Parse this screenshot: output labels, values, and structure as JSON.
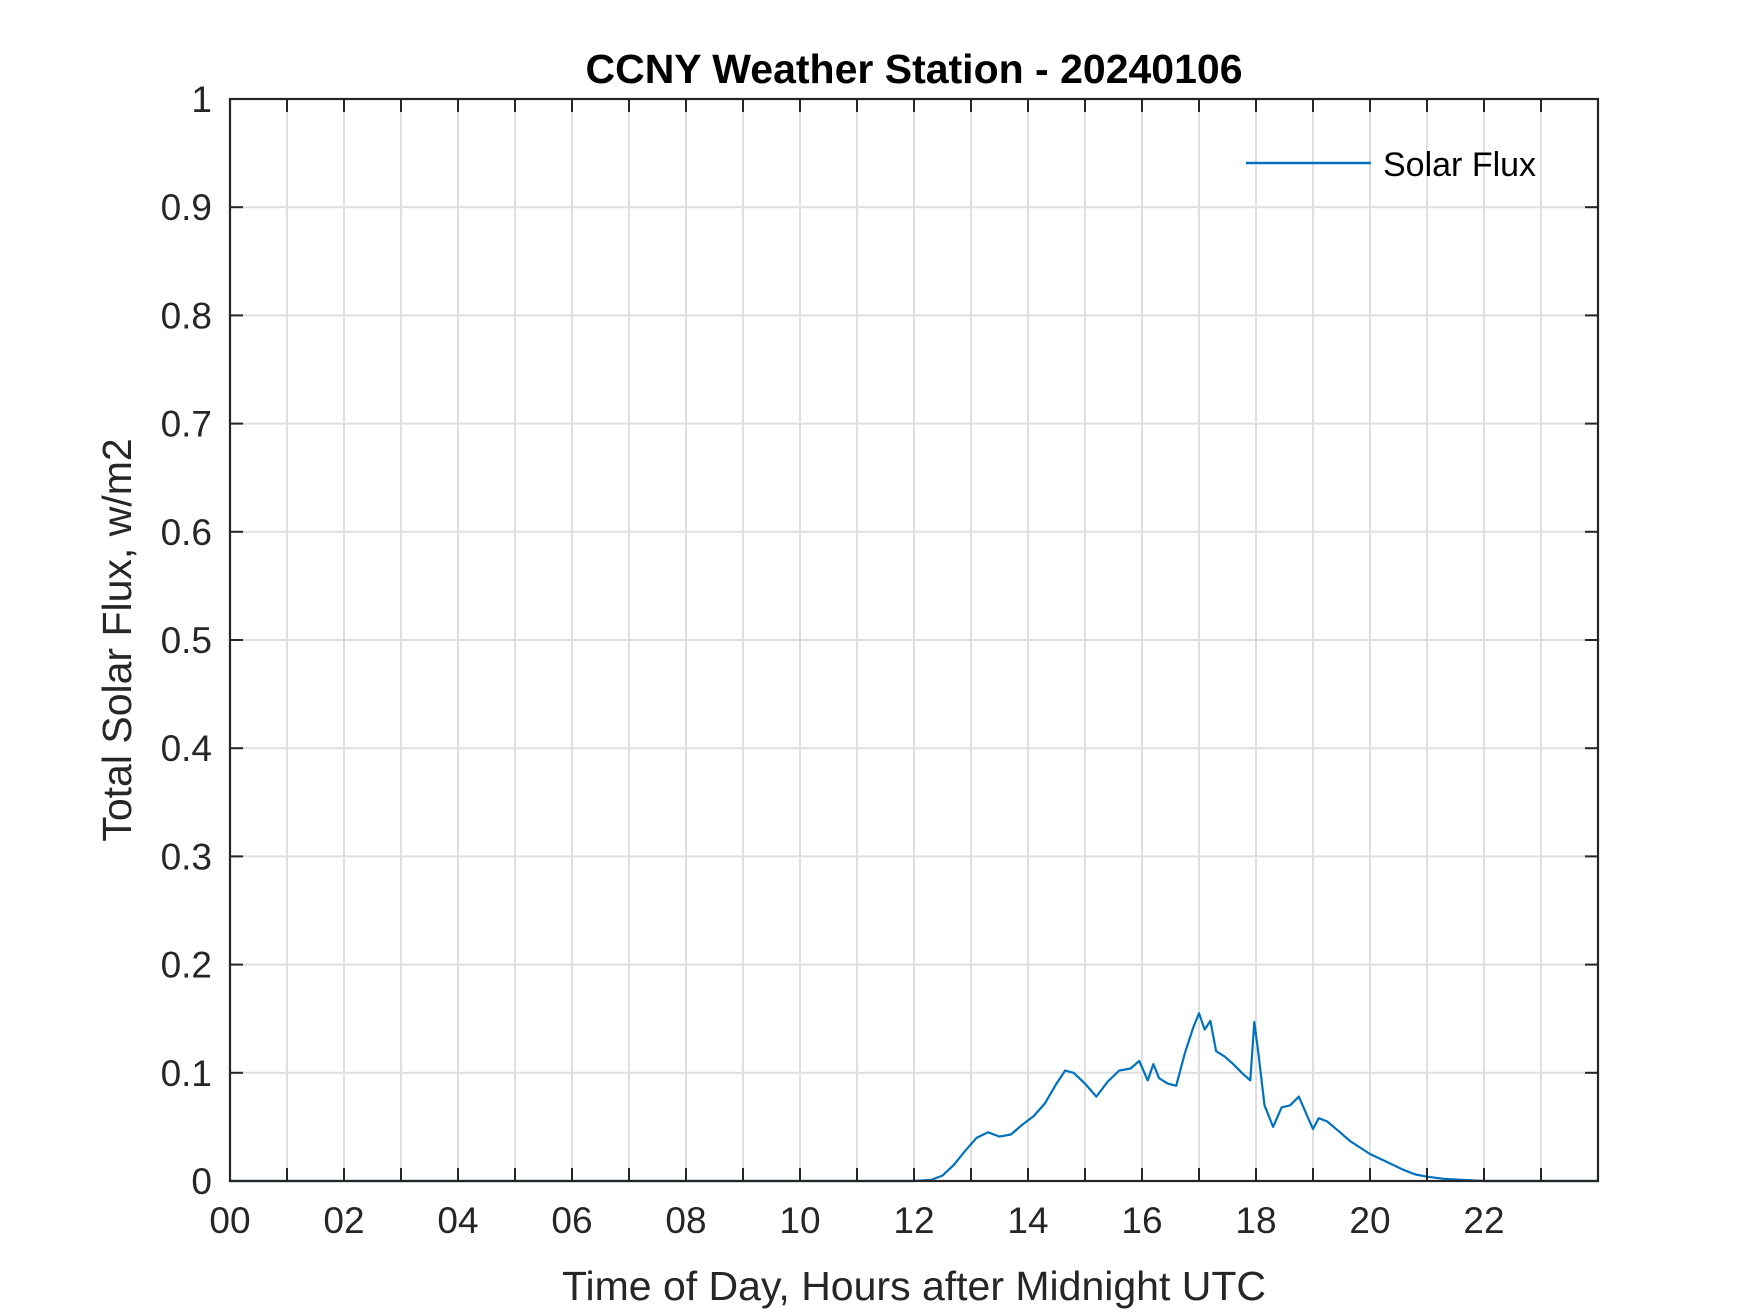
{
  "chart_data": {
    "type": "line",
    "title": "CCNY Weather Station - 20240106",
    "xlabel": "Time of Day, Hours after Midnight UTC",
    "ylabel": "Total Solar Flux, w/m2",
    "xlim": [
      0,
      24
    ],
    "ylim": [
      0,
      1
    ],
    "xticks": [
      0,
      2,
      4,
      6,
      8,
      10,
      12,
      14,
      16,
      18,
      20,
      22
    ],
    "xtick_labels": [
      "00",
      "02",
      "04",
      "06",
      "08",
      "10",
      "12",
      "14",
      "16",
      "18",
      "20",
      "22"
    ],
    "xgrid_step": 1,
    "yticks": [
      0,
      0.1,
      0.2,
      0.3,
      0.4,
      0.5,
      0.6,
      0.7,
      0.8,
      0.9,
      1
    ],
    "ytick_labels": [
      "0",
      "0.1",
      "0.2",
      "0.3",
      "0.4",
      "0.5",
      "0.6",
      "0.7",
      "0.8",
      "0.9",
      "1"
    ],
    "grid": true,
    "legend_position": "top-right",
    "series": [
      {
        "name": "Solar Flux",
        "color": "#0072BD",
        "x": [
          0,
          12.0,
          12.3,
          12.5,
          12.7,
          12.9,
          13.1,
          13.3,
          13.5,
          13.7,
          13.9,
          14.1,
          14.3,
          14.5,
          14.65,
          14.8,
          15.0,
          15.2,
          15.4,
          15.6,
          15.8,
          15.95,
          16.1,
          16.2,
          16.3,
          16.45,
          16.6,
          16.75,
          16.9,
          17.0,
          17.1,
          17.2,
          17.3,
          17.45,
          17.6,
          17.75,
          17.9,
          17.97,
          18.05,
          18.15,
          18.3,
          18.45,
          18.6,
          18.75,
          18.9,
          19.0,
          19.1,
          19.25,
          19.45,
          19.65,
          19.85,
          20.0,
          20.2,
          20.4,
          20.6,
          20.8,
          21.0,
          21.3,
          21.6,
          22.0,
          22.5,
          24
        ],
        "y": [
          0,
          0,
          0.001,
          0.005,
          0.015,
          0.028,
          0.04,
          0.045,
          0.041,
          0.043,
          0.052,
          0.06,
          0.072,
          0.09,
          0.102,
          0.1,
          0.09,
          0.078,
          0.092,
          0.102,
          0.104,
          0.111,
          0.093,
          0.108,
          0.095,
          0.09,
          0.088,
          0.118,
          0.142,
          0.155,
          0.14,
          0.148,
          0.12,
          0.115,
          0.108,
          0.1,
          0.093,
          0.147,
          0.115,
          0.07,
          0.05,
          0.068,
          0.07,
          0.078,
          0.06,
          0.048,
          0.058,
          0.055,
          0.046,
          0.037,
          0.03,
          0.025,
          0.02,
          0.015,
          0.01,
          0.006,
          0.004,
          0.002,
          0.001,
          0,
          0,
          0
        ]
      }
    ]
  }
}
